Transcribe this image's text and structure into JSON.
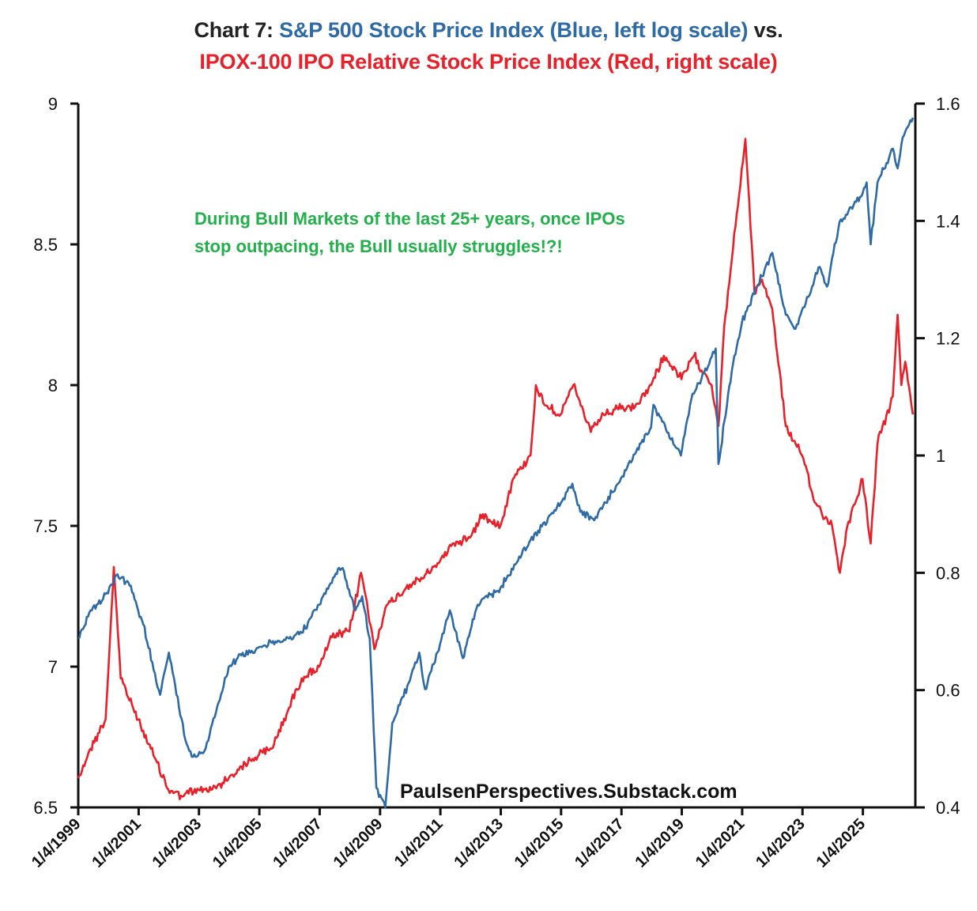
{
  "title": {
    "prefix": "Chart 7: ",
    "blue_part": "S&P 500 Stock Price Index (Blue, left log scale)",
    "suffix": " vs.",
    "red_part": "IPOX-100 IPO Relative Stock Price Index (Red, right scale)"
  },
  "colors": {
    "sp500": "#2e6aa6",
    "ipox": "#e8202a",
    "annotation": "#22b04b",
    "axis": "#111111"
  },
  "annotation": {
    "line1": "During Bull Markets of the last 25+ years, once IPOs",
    "line2": "stop outpacing, the Bull usually struggles!?!"
  },
  "source": "PaulsenPerspectives.Substack.com",
  "chart_data": {
    "type": "line",
    "x_range": [
      "1999-01-04",
      "2026-10-01"
    ],
    "x_tick_labels": [
      "1/4/1999",
      "1/4/2001",
      "1/4/2003",
      "1/4/2005",
      "1/4/2007",
      "1/4/2009",
      "1/4/2011",
      "1/4/2013",
      "1/4/2015",
      "1/4/2017",
      "1/4/2019",
      "1/4/2021",
      "1/4/2023",
      "1/4/2025"
    ],
    "y_left": {
      "scale": "log (natural log of index)",
      "ylim": [
        6.5,
        9
      ],
      "ticks": [
        "9",
        "8.5",
        "8",
        "7.5",
        "7",
        "6.5"
      ]
    },
    "y_right": {
      "ylim": [
        0.4,
        1.6
      ],
      "ticks": [
        "1.6",
        "1.4",
        "1.2",
        "1",
        "0.8",
        "0.6",
        "0.4"
      ]
    },
    "grid": false,
    "series": [
      {
        "name": "S&P 500 Stock Price Index",
        "axis": "left",
        "points": [
          [
            "1999-01-04",
            7.1
          ],
          [
            "1999-06-01",
            7.2
          ],
          [
            "1999-12-31",
            7.26
          ],
          [
            "2000-03-24",
            7.32
          ],
          [
            "2000-09-01",
            7.3
          ],
          [
            "2001-03-01",
            7.15
          ],
          [
            "2001-09-21",
            6.9
          ],
          [
            "2002-01-04",
            7.05
          ],
          [
            "2002-07-23",
            6.74
          ],
          [
            "2002-10-09",
            6.68
          ],
          [
            "2003-03-11",
            6.7
          ],
          [
            "2003-12-31",
            7.0
          ],
          [
            "2004-06-01",
            7.04
          ],
          [
            "2005-01-04",
            7.07
          ],
          [
            "2005-12-30",
            7.1
          ],
          [
            "2006-06-01",
            7.12
          ],
          [
            "2006-12-29",
            7.22
          ],
          [
            "2007-07-16",
            7.33
          ],
          [
            "2007-10-09",
            7.35
          ],
          [
            "2008-03-10",
            7.2
          ],
          [
            "2008-06-01",
            7.25
          ],
          [
            "2008-09-01",
            7.1
          ],
          [
            "2008-11-20",
            6.57
          ],
          [
            "2009-03-09",
            6.5
          ],
          [
            "2009-06-01",
            6.8
          ],
          [
            "2009-12-31",
            6.95
          ],
          [
            "2010-04-23",
            7.05
          ],
          [
            "2010-07-02",
            6.92
          ],
          [
            "2010-12-31",
            7.08
          ],
          [
            "2011-04-29",
            7.2
          ],
          [
            "2011-10-03",
            7.03
          ],
          [
            "2012-03-30",
            7.22
          ],
          [
            "2012-12-31",
            7.28
          ],
          [
            "2013-12-31",
            7.45
          ],
          [
            "2014-12-31",
            7.58
          ],
          [
            "2015-05-21",
            7.65
          ],
          [
            "2015-08-25",
            7.55
          ],
          [
            "2016-02-11",
            7.52
          ],
          [
            "2016-12-30",
            7.67
          ],
          [
            "2017-12-29",
            7.85
          ],
          [
            "2018-01-26",
            7.93
          ],
          [
            "2018-12-24",
            7.75
          ],
          [
            "2019-04-30",
            7.95
          ],
          [
            "2019-12-31",
            8.1
          ],
          [
            "2020-02-19",
            8.13
          ],
          [
            "2020-03-23",
            7.72
          ],
          [
            "2020-08-31",
            8.05
          ],
          [
            "2020-12-31",
            8.22
          ],
          [
            "2021-06-30",
            8.35
          ],
          [
            "2022-01-03",
            8.47
          ],
          [
            "2022-06-16",
            8.25
          ],
          [
            "2022-10-12",
            8.2
          ],
          [
            "2023-07-31",
            8.42
          ],
          [
            "2023-10-27",
            8.35
          ],
          [
            "2024-03-28",
            8.58
          ],
          [
            "2024-12-31",
            8.68
          ],
          [
            "2025-02-19",
            8.72
          ],
          [
            "2025-04-08",
            8.5
          ],
          [
            "2025-06-30",
            8.72
          ],
          [
            "2026-01-02",
            8.84
          ],
          [
            "2026-03-01",
            8.77
          ],
          [
            "2026-05-01",
            8.88
          ],
          [
            "2026-09-01",
            8.95
          ]
        ]
      },
      {
        "name": "IPOX-100 IPO Relative Stock Price Index",
        "axis": "right",
        "points": [
          [
            "1999-01-04",
            0.45
          ],
          [
            "1999-06-01",
            0.5
          ],
          [
            "1999-12-01",
            0.55
          ],
          [
            "2000-03-10",
            0.81
          ],
          [
            "2000-06-01",
            0.62
          ],
          [
            "2000-12-29",
            0.55
          ],
          [
            "2001-06-01",
            0.5
          ],
          [
            "2001-12-31",
            0.43
          ],
          [
            "2002-06-01",
            0.42
          ],
          [
            "2002-12-31",
            0.43
          ],
          [
            "2003-06-01",
            0.43
          ],
          [
            "2003-12-31",
            0.45
          ],
          [
            "2004-06-01",
            0.47
          ],
          [
            "2004-12-31",
            0.49
          ],
          [
            "2005-06-01",
            0.5
          ],
          [
            "2005-12-30",
            0.57
          ],
          [
            "2006-06-01",
            0.62
          ],
          [
            "2006-12-29",
            0.64
          ],
          [
            "2007-06-01",
            0.69
          ],
          [
            "2007-12-31",
            0.7
          ],
          [
            "2008-05-19",
            0.8
          ],
          [
            "2008-07-15",
            0.76
          ],
          [
            "2008-10-27",
            0.67
          ],
          [
            "2009-03-09",
            0.74
          ],
          [
            "2009-12-31",
            0.78
          ],
          [
            "2010-06-01",
            0.79
          ],
          [
            "2010-12-31",
            0.82
          ],
          [
            "2011-06-01",
            0.85
          ],
          [
            "2011-12-30",
            0.86
          ],
          [
            "2012-06-01",
            0.9
          ],
          [
            "2012-12-31",
            0.88
          ],
          [
            "2013-06-01",
            0.96
          ],
          [
            "2013-12-31",
            1.0
          ],
          [
            "2014-03-05",
            1.12
          ],
          [
            "2014-06-01",
            1.09
          ],
          [
            "2014-12-31",
            1.07
          ],
          [
            "2015-06-01",
            1.12
          ],
          [
            "2015-12-31",
            1.04
          ],
          [
            "2016-06-01",
            1.07
          ],
          [
            "2016-12-30",
            1.08
          ],
          [
            "2017-06-01",
            1.08
          ],
          [
            "2017-12-29",
            1.12
          ],
          [
            "2018-06-01",
            1.17
          ],
          [
            "2018-12-31",
            1.13
          ],
          [
            "2019-06-01",
            1.17
          ],
          [
            "2019-12-31",
            1.12
          ],
          [
            "2020-03-23",
            1.05
          ],
          [
            "2020-06-01",
            1.22
          ],
          [
            "2021-02-12",
            1.54
          ],
          [
            "2021-06-01",
            1.28
          ],
          [
            "2021-09-01",
            1.3
          ],
          [
            "2022-01-03",
            1.25
          ],
          [
            "2022-06-16",
            1.05
          ],
          [
            "2022-12-30",
            1.0
          ],
          [
            "2023-06-01",
            0.92
          ],
          [
            "2023-12-29",
            0.88
          ],
          [
            "2024-04-01",
            0.8
          ],
          [
            "2024-06-30",
            0.88
          ],
          [
            "2024-12-31",
            0.96
          ],
          [
            "2025-04-08",
            0.85
          ],
          [
            "2025-06-30",
            1.02
          ],
          [
            "2025-12-31",
            1.1
          ],
          [
            "2026-03-01",
            1.24
          ],
          [
            "2026-04-15",
            1.12
          ],
          [
            "2026-06-01",
            1.16
          ],
          [
            "2026-09-01",
            1.07
          ]
        ]
      }
    ]
  }
}
